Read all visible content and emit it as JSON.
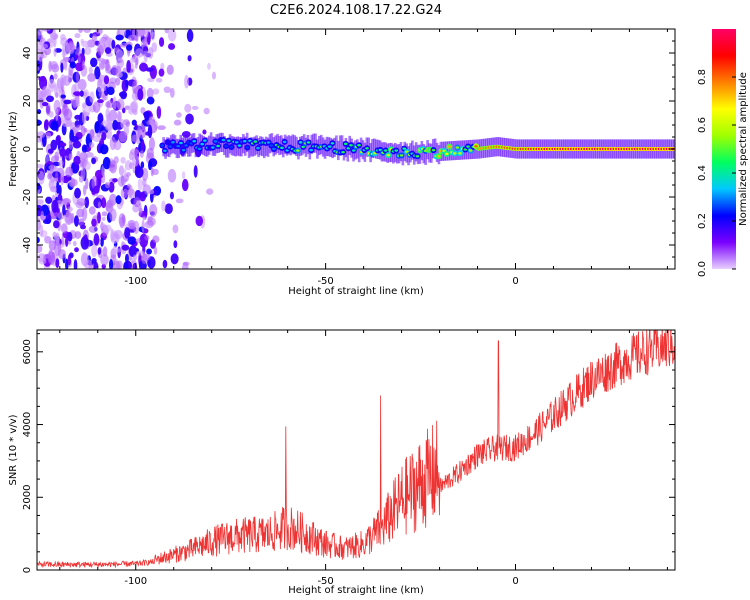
{
  "figure": {
    "title": "C2E6.2024.108.17.22.G24"
  },
  "chart_data": [
    {
      "type": "heatmap",
      "xlabel": "Height of straight line (km)",
      "ylabel": "Frequency (Hz)",
      "xlim": [
        -126,
        42
      ],
      "ylim": [
        -50,
        50
      ],
      "x_ticks": [
        -100,
        -50,
        0
      ],
      "y_ticks": [
        -40,
        -20,
        0,
        20,
        40
      ],
      "colorbar": {
        "label": "Normalized spectral amplitude",
        "range": [
          0,
          1
        ],
        "ticks": [
          0.0,
          0.2,
          0.4,
          0.6,
          0.8
        ],
        "tick_labels": [
          "0.0",
          "0.2",
          "0.4",
          "0.6",
          "0.8"
        ],
        "colormap": [
          "#e8d0ff",
          "#7a00ff",
          "#0000ff",
          "#00c8ff",
          "#00ff60",
          "#a0ff00",
          "#ffff00",
          "#ff8000",
          "#ff0000",
          "#ff0066"
        ]
      },
      "noise_region_x": [
        -126,
        -78
      ],
      "ridge_x": [
        -93,
        -80,
        -70,
        -60,
        -50,
        -40,
        -30,
        -20,
        -10,
        -5,
        0,
        10,
        20,
        30,
        42
      ],
      "ridge_freq": [
        1,
        2,
        1.5,
        1,
        1,
        -0.5,
        -1.5,
        -1,
        0,
        1,
        0,
        0,
        0,
        0,
        0
      ],
      "ridge_amplitude": [
        0.3,
        0.35,
        0.4,
        0.45,
        0.5,
        0.55,
        0.6,
        0.65,
        0.75,
        0.8,
        0.85,
        0.92,
        0.93,
        0.93,
        0.93
      ]
    },
    {
      "type": "line",
      "xlabel": "Height of straight line (km)",
      "ylabel": "SNR (10 * v/v)",
      "xlim": [
        -126,
        42
      ],
      "ylim": [
        0,
        6600
      ],
      "x_ticks": [
        -100,
        -50,
        0
      ],
      "y_ticks": [
        0,
        2000,
        4000,
        6000
      ],
      "color": "#ee3333",
      "series": [
        {
          "x": [
            -126,
            -110,
            -100,
            -95,
            -90,
            -85,
            -80,
            -75,
            -70,
            -65,
            -60,
            -55,
            -50,
            -45,
            -40,
            -35,
            -30,
            -25,
            -20,
            -15,
            -10,
            -5,
            0,
            5,
            10,
            15,
            20,
            25,
            30,
            35,
            42
          ],
          "y": [
            150,
            150,
            170,
            230,
            350,
            480,
            650,
            760,
            800,
            820,
            1000,
            820,
            600,
            500,
            600,
            1000,
            1600,
            2000,
            2300,
            2700,
            3200,
            3400,
            3400,
            3800,
            4300,
            4800,
            5300,
            5600,
            5900,
            6100,
            6300
          ]
        }
      ],
      "spikes": [
        {
          "x": -60.5,
          "y": 3950
        },
        {
          "x": -35.5,
          "y": 4800
        },
        {
          "x": -4.5,
          "y": 6300
        }
      ]
    }
  ]
}
